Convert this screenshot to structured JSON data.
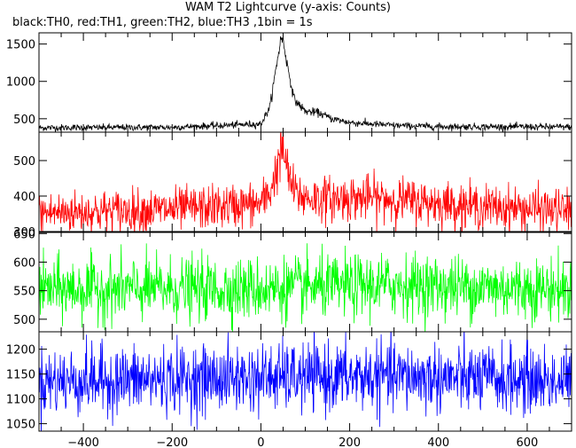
{
  "header": {
    "title": "WAM T2 Lightcurve (y-axis: Counts)",
    "subtitle": "black:TH0, red:TH1, green:TH2, blue:TH3 ,1bin = 1s"
  },
  "chart_data": {
    "type": "line",
    "title": "WAM T2 Lightcurve (y-axis: Counts)",
    "subtitle": "black:TH0, red:TH1, green:TH2, blue:TH3 ,1bin = 1s",
    "xlabel": "",
    "ylabel": "Counts",
    "xlim": [
      -500,
      700
    ],
    "xticks": [
      -400,
      -200,
      0,
      200,
      400,
      600
    ],
    "grid": false,
    "legend": "none",
    "panels": [
      {
        "name": "TH0",
        "color": "#000000",
        "ylim": [
          320,
          1650
        ],
        "yticks": [
          500,
          1000,
          1500
        ],
        "baseline": 380,
        "noise": 22,
        "x": [
          -500,
          -200,
          0,
          20,
          35,
          45,
          50,
          60,
          75,
          100,
          130,
          160,
          200,
          300,
          400,
          700
        ],
        "y": [
          380,
          385,
          430,
          650,
          1200,
          1580,
          1550,
          1200,
          760,
          600,
          580,
          500,
          450,
          410,
          395,
          390
        ]
      },
      {
        "name": "TH1",
        "color": "#ff0000",
        "ylim": [
          300,
          580
        ],
        "yticks": [
          300,
          400,
          500
        ],
        "baseline": 355,
        "noise": 30,
        "x": [
          -500,
          -200,
          0,
          20,
          35,
          45,
          50,
          60,
          75,
          100,
          150,
          250,
          350,
          500,
          700
        ],
        "y": [
          352,
          362,
          378,
          410,
          470,
          525,
          530,
          470,
          410,
          395,
          392,
          395,
          385,
          370,
          358
        ]
      },
      {
        "name": "TH2",
        "color": "#00ff00",
        "ylim": [
          478,
          652
        ],
        "yticks": [
          500,
          550,
          600,
          650
        ],
        "baseline": 550,
        "noise": 27,
        "x": [
          -500,
          0,
          300,
          700
        ],
        "y": [
          552,
          553,
          560,
          552
        ]
      },
      {
        "name": "TH3",
        "color": "#0000ff",
        "ylim": [
          1035,
          1235
        ],
        "yticks": [
          1050,
          1100,
          1150,
          1200
        ],
        "baseline": 1140,
        "noise": 34,
        "x": [
          -500,
          0,
          300,
          700
        ],
        "y": [
          1135,
          1142,
          1145,
          1135
        ]
      }
    ]
  }
}
